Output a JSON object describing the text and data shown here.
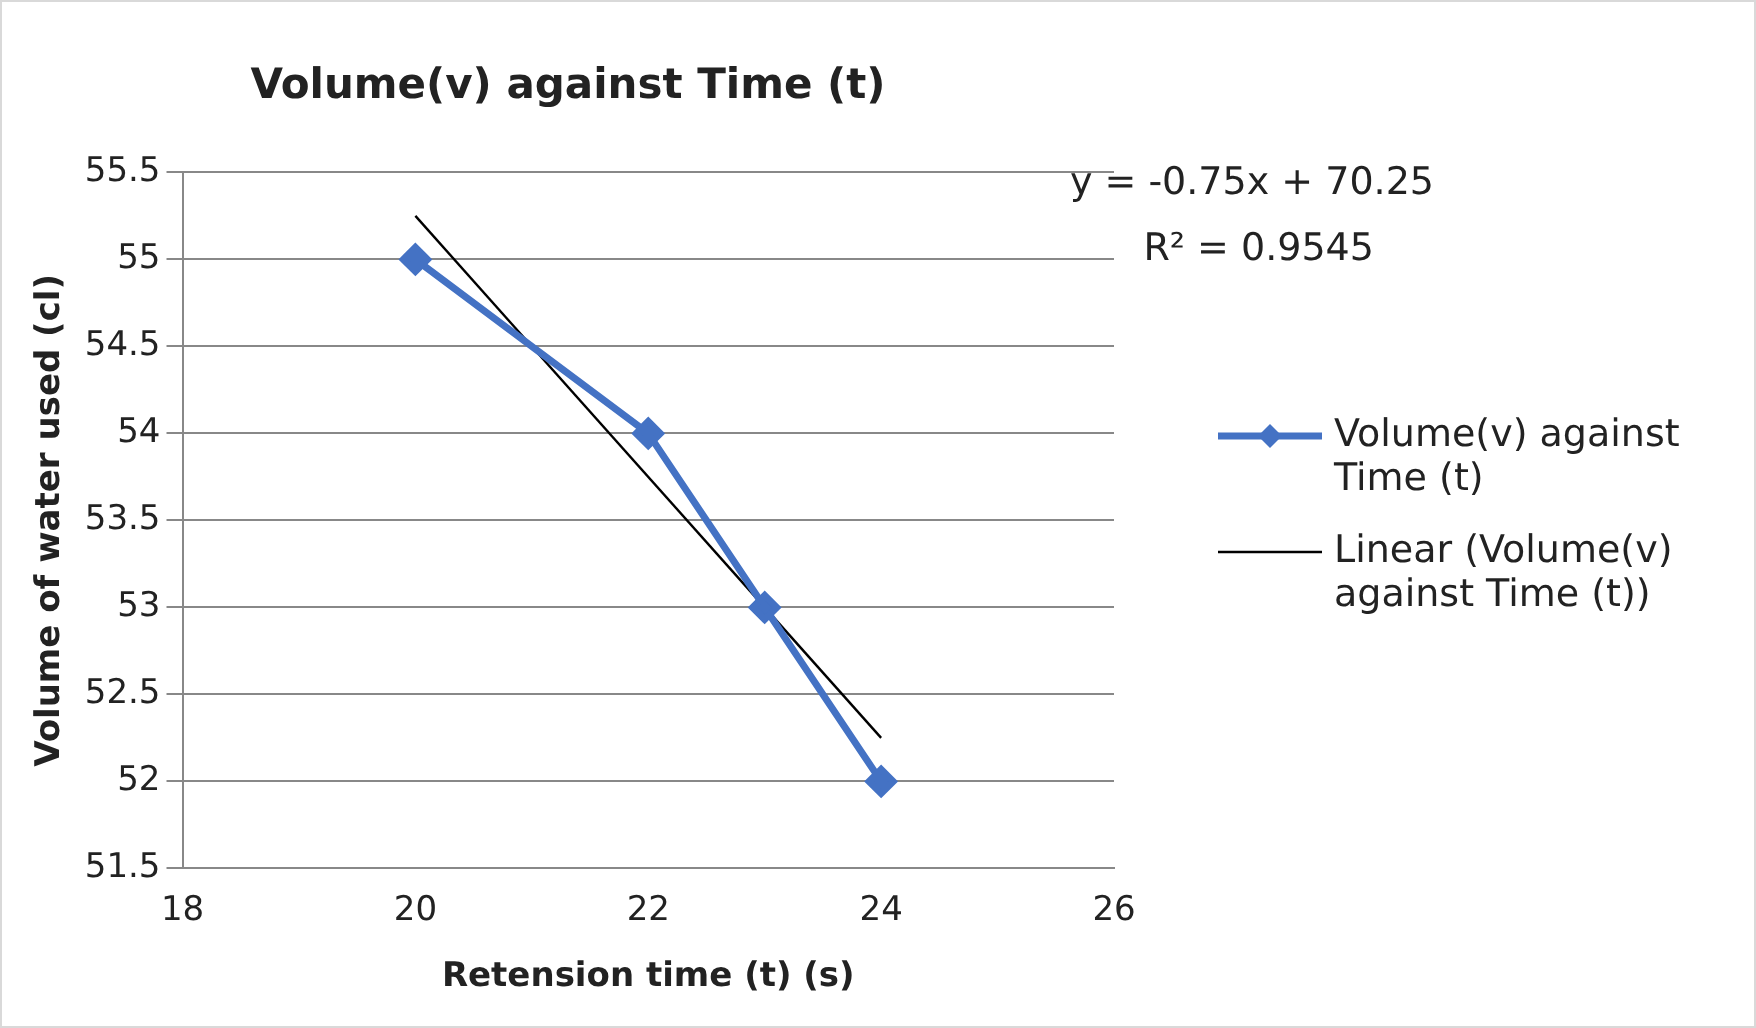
{
  "chart_data": {
    "type": "line",
    "title": "Volume(v) against Time (t)",
    "xlabel": "Retension time (t) (s)",
    "ylabel": "Volume of water used (cl)",
    "x": [
      20,
      22,
      23,
      24
    ],
    "series": [
      {
        "name": "Volume(v) against Time (t)",
        "color": "#4472c4",
        "values": [
          55,
          54,
          53,
          52
        ],
        "marker": "diamond"
      },
      {
        "name": "Linear (Volume(v) against Time (t))",
        "type": "line",
        "color": "#000000",
        "x": [
          20,
          24
        ],
        "values": [
          55.25,
          52.25
        ],
        "marker": "none"
      }
    ],
    "xlim": [
      18,
      26
    ],
    "xticks": [
      18,
      20,
      22,
      24,
      26
    ],
    "ylim": [
      51.5,
      55.5
    ],
    "yticks": [
      51.5,
      52,
      52.5,
      53,
      53.5,
      54,
      54.5,
      55,
      55.5
    ],
    "grid": "y",
    "legend": "right",
    "line_style": "solid",
    "annotations": [
      "y = -0.75x + 70.25",
      "R² = 0.9545"
    ]
  }
}
